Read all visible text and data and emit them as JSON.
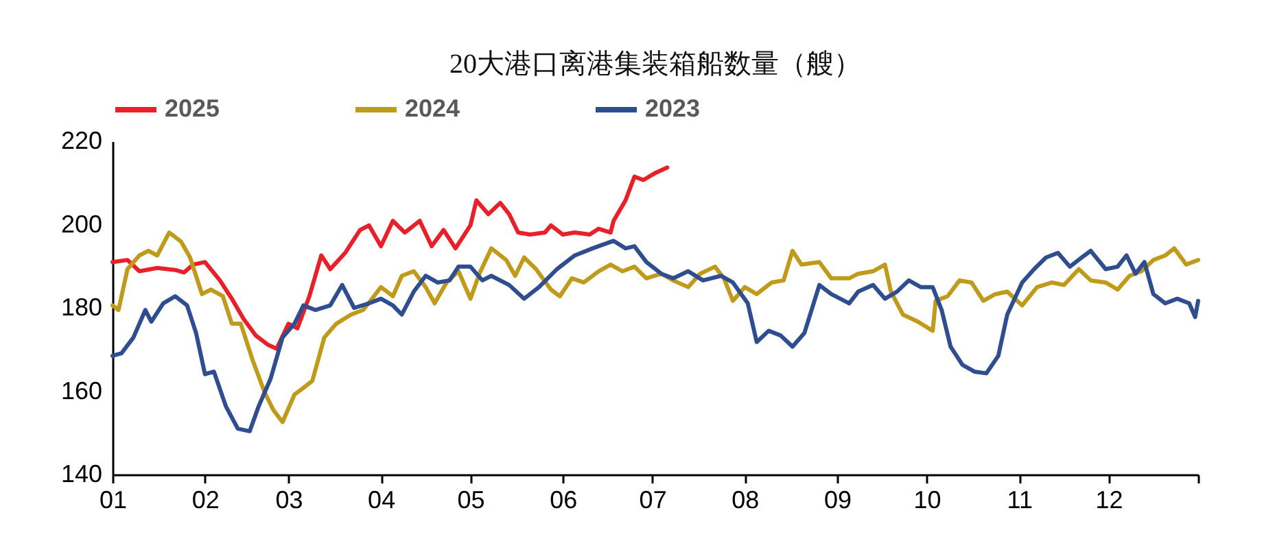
{
  "chart_data": {
    "type": "line",
    "title": "20大港口离港集装箱船数量（艘）",
    "legend": "top",
    "xlim": [
      "--01-01",
      "--12-31"
    ],
    "xticks": [
      {
        "value": "--01-01",
        "label": "01"
      },
      {
        "value": "--02-01",
        "label": "02"
      },
      {
        "value": "--03-01",
        "label": "03"
      },
      {
        "value": "--04-01",
        "label": "04"
      },
      {
        "value": "--05-01",
        "label": "05"
      },
      {
        "value": "--06-01",
        "label": "06"
      },
      {
        "value": "--07-01",
        "label": "07"
      },
      {
        "value": "--08-01",
        "label": "08"
      },
      {
        "value": "--09-01",
        "label": "09"
      },
      {
        "value": "--10-01",
        "label": "10"
      },
      {
        "value": "--11-01",
        "label": "11"
      },
      {
        "value": "--12-01",
        "label": "12"
      },
      {
        "value": "--12-31",
        "label": null
      }
    ],
    "ylim": [
      140,
      220
    ],
    "yticks": [
      140,
      160,
      180,
      200,
      220
    ],
    "series": [
      {
        "name": "2025",
        "color": "#e8202a",
        "x": [
          "--01-01",
          "--01-06",
          "--01-10",
          "--01-16",
          "--01-22",
          "--01-25",
          "--01-28",
          "--02-01",
          "--02-06",
          "--02-10",
          "--02-14",
          "--02-18",
          "--02-22",
          "--02-25",
          "--03-01",
          "--03-04",
          "--03-08",
          "--03-12",
          "--03-15",
          "--03-20",
          "--03-25",
          "--03-28",
          "--04-01",
          "--04-05",
          "--04-09",
          "--04-14",
          "--04-18",
          "--04-22",
          "--04-26",
          "--05-01",
          "--05-03",
          "--05-07",
          "--05-11",
          "--05-14",
          "--05-17",
          "--05-21",
          "--05-26",
          "--05-28",
          "--06-01",
          "--06-05",
          "--06-10",
          "--06-13",
          "--06-17",
          "--06-18",
          "--06-22",
          "--06-25",
          "--06-28",
          "--07-02",
          "--07-06"
        ],
        "values": [
          191,
          191.5,
          188.8,
          189.6,
          189.1,
          188.5,
          190.4,
          191,
          186.6,
          182.2,
          177.3,
          173.4,
          171.2,
          170.2,
          176.2,
          175.1,
          182.8,
          192.6,
          189.3,
          193.2,
          198.7,
          199.8,
          194.8,
          200.9,
          198.1,
          200.9,
          194.8,
          198.7,
          194.3,
          199.8,
          205.8,
          202.5,
          205.2,
          202.5,
          198.1,
          197.6,
          198.1,
          199.8,
          197.6,
          198.1,
          197.6,
          199,
          198.1,
          200.9,
          205.8,
          211.5,
          210.7,
          212.4,
          213.7
        ]
      },
      {
        "name": "2024",
        "color": "#c09a1a",
        "x": [
          "--01-01",
          "--01-03",
          "--01-06",
          "--01-10",
          "--01-13",
          "--01-16",
          "--01-20",
          "--01-24",
          "--01-27",
          "--01-31",
          "--02-03",
          "--02-07",
          "--02-10",
          "--02-13",
          "--02-17",
          "--02-21",
          "--02-24",
          "--02-27",
          "--03-03",
          "--03-06",
          "--03-09",
          "--03-13",
          "--03-17",
          "--03-22",
          "--03-26",
          "--03-29",
          "--04-01",
          "--04-05",
          "--04-08",
          "--04-12",
          "--04-16",
          "--04-19",
          "--04-23",
          "--04-27",
          "--05-01",
          "--05-04",
          "--05-08",
          "--05-13",
          "--05-16",
          "--05-19",
          "--05-23",
          "--05-28",
          "--05-31",
          "--06-04",
          "--06-08",
          "--06-13",
          "--06-17",
          "--06-21",
          "--06-25",
          "--06-29",
          "--07-04",
          "--07-08",
          "--07-13",
          "--07-17",
          "--07-22",
          "--07-25",
          "--07-28",
          "--08-01",
          "--08-05",
          "--08-10",
          "--08-14",
          "--08-17",
          "--08-20",
          "--08-26",
          "--08-30",
          "--09-05",
          "--09-08",
          "--09-13",
          "--09-17",
          "--09-19",
          "--09-23",
          "--09-28",
          "--10-03",
          "--10-04",
          "--10-08",
          "--10-12",
          "--10-16",
          "--10-20",
          "--10-24",
          "--10-28",
          "--11-02",
          "--11-07",
          "--11-12",
          "--11-16",
          "--11-21",
          "--11-25",
          "--11-30",
          "--12-04",
          "--12-08",
          "--12-12",
          "--12-16",
          "--12-20",
          "--12-23",
          "--12-27",
          "--12-31"
        ],
        "values": [
          180.6,
          179.5,
          189.3,
          192.6,
          193.7,
          192.6,
          198.1,
          195.9,
          192.1,
          183.3,
          184.4,
          182.8,
          176.2,
          176.2,
          167.4,
          159.7,
          155.4,
          152.6,
          159.2,
          160.8,
          162.5,
          172.9,
          176.2,
          178.4,
          179.5,
          182.2,
          185,
          182.8,
          187.7,
          188.8,
          185,
          181.1,
          186.1,
          188.8,
          182.2,
          188.2,
          194.3,
          191.5,
          187.7,
          192.1,
          189.3,
          184.4,
          182.8,
          187.1,
          186.1,
          188.8,
          190.4,
          188.8,
          189.9,
          187.1,
          188.2,
          186.6,
          185,
          188.2,
          189.9,
          187.1,
          181.7,
          185,
          183.3,
          186.1,
          186.6,
          193.7,
          190.4,
          191,
          187.1,
          187.1,
          188.2,
          188.8,
          190.4,
          183.9,
          178.4,
          176.7,
          174.5,
          181.7,
          182.8,
          186.6,
          186.1,
          181.7,
          183.3,
          183.9,
          180.6,
          185,
          186.1,
          185.5,
          189.3,
          186.6,
          186.1,
          184.4,
          187.7,
          188.8,
          191.5,
          192.6,
          194.3,
          190.4,
          191.5
        ]
      },
      {
        "name": "2023",
        "color": "#2e4e8f",
        "x": [
          "--01-01",
          "--01-04",
          "--01-08",
          "--01-12",
          "--01-14",
          "--01-18",
          "--01-22",
          "--01-26",
          "--01-29",
          "--02-01",
          "--02-04",
          "--02-08",
          "--02-12",
          "--02-16",
          "--02-19",
          "--02-23",
          "--02-27",
          "--03-03",
          "--03-06",
          "--03-10",
          "--03-15",
          "--03-19",
          "--03-23",
          "--03-28",
          "--04-01",
          "--04-05",
          "--04-08",
          "--04-12",
          "--04-16",
          "--04-20",
          "--04-24",
          "--04-27",
          "--05-01",
          "--05-05",
          "--05-08",
          "--05-14",
          "--05-19",
          "--05-24",
          "--05-30",
          "--06-05",
          "--06-11",
          "--06-18",
          "--06-22",
          "--06-25",
          "--06-29",
          "--07-04",
          "--07-08",
          "--07-13",
          "--07-18",
          "--07-24",
          "--07-28",
          "--08-02",
          "--08-05",
          "--08-09",
          "--08-13",
          "--08-17",
          "--08-21",
          "--08-26",
          "--08-30",
          "--09-05",
          "--09-08",
          "--09-13",
          "--09-17",
          "--09-21",
          "--09-25",
          "--09-29",
          "--10-03",
          "--10-06",
          "--10-09",
          "--10-13",
          "--10-17",
          "--10-21",
          "--10-25",
          "--10-28",
          "--11-02",
          "--11-06",
          "--11-10",
          "--11-14",
          "--11-18",
          "--11-22",
          "--11-25",
          "--11-30",
          "--12-04",
          "--12-07",
          "--12-10",
          "--12-13",
          "--12-16",
          "--12-20",
          "--12-24",
          "--12-28",
          "--12-30",
          "--12-31"
        ],
        "values": [
          168.5,
          169.1,
          172.9,
          179.5,
          176.7,
          181.1,
          182.8,
          180.6,
          174,
          164.1,
          164.7,
          156.4,
          151,
          150.4,
          156.4,
          163,
          172.9,
          176.2,
          180.6,
          179.5,
          180.6,
          185.5,
          180,
          181.1,
          182.2,
          180.6,
          178.4,
          183.9,
          187.7,
          186.1,
          186.6,
          189.9,
          189.9,
          186.6,
          187.7,
          185.5,
          182.2,
          185,
          189.3,
          192.6,
          194.3,
          196.1,
          194.3,
          194.8,
          191,
          188.2,
          187.1,
          188.8,
          186.6,
          187.7,
          186.1,
          181.1,
          171.8,
          174.5,
          173.4,
          170.7,
          174,
          185.5,
          183.3,
          181.1,
          183.9,
          185.5,
          182.2,
          183.9,
          186.6,
          185,
          185,
          179.5,
          170.7,
          166.3,
          164.7,
          164.3,
          168.5,
          178.4,
          186.1,
          189.3,
          192.1,
          193.2,
          189.9,
          192.1,
          193.7,
          189.3,
          189.9,
          192.6,
          188.2,
          191,
          183.3,
          181.1,
          182.2,
          181.1,
          177.8,
          181.7
        ]
      }
    ]
  }
}
